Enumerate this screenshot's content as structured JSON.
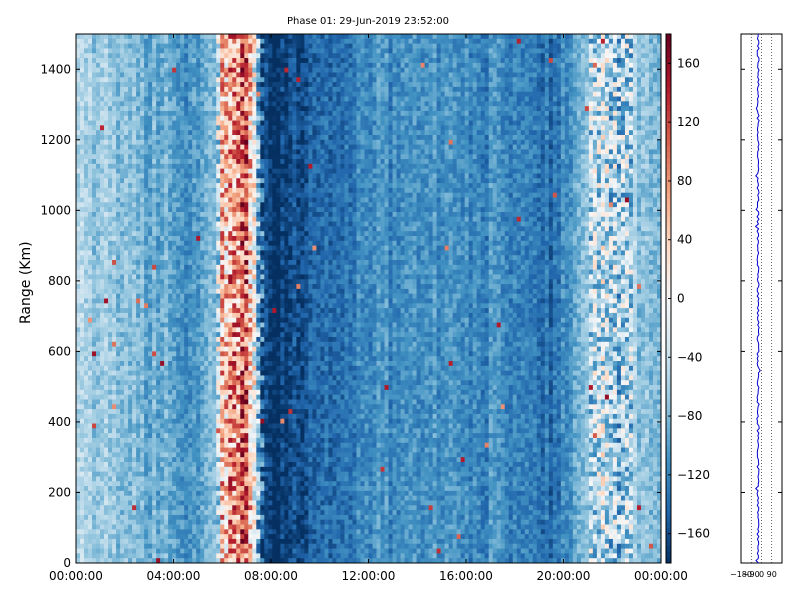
{
  "chart_data": [
    {
      "type": "heatmap",
      "title": "Phase 01: 29-Jun-2019 23:52:00",
      "ylabel": "Range (Km)",
      "xlabel": "",
      "xticks": [
        "00:00:00",
        "04:00:00",
        "08:00:00",
        "12:00:00",
        "16:00:00",
        "20:00:00",
        "00:00:00"
      ],
      "xlim_hours": [
        0,
        24
      ],
      "yticks": [
        "0",
        "200",
        "400",
        "600",
        "800",
        "1000",
        "1200",
        "1400"
      ],
      "ylim": [
        0,
        1500
      ],
      "colorbar": {
        "colormap": "RdBu_r",
        "range": [
          -180,
          180
        ],
        "ticks": [
          "−160",
          "−120",
          "−80",
          "−40",
          "0",
          "40",
          "80",
          "120",
          "160"
        ]
      },
      "phase_profile_by_hour": [
        {
          "hour": 0,
          "phase": -60
        },
        {
          "hour": 1,
          "phase": -65
        },
        {
          "hour": 2,
          "phase": -75
        },
        {
          "hour": 3,
          "phase": -85
        },
        {
          "hour": 4,
          "phase": -95
        },
        {
          "hour": 5,
          "phase": -110
        },
        {
          "hour": 5.8,
          "phase": -60
        },
        {
          "hour": 6,
          "phase": 50
        },
        {
          "hour": 7,
          "phase": 110
        },
        {
          "hour": 7.6,
          "phase": -130
        },
        {
          "hour": 8,
          "phase": -180
        },
        {
          "hour": 9,
          "phase": -165
        },
        {
          "hour": 10,
          "phase": -145
        },
        {
          "hour": 12,
          "phase": -115
        },
        {
          "hour": 14,
          "phase": -110
        },
        {
          "hour": 16,
          "phase": -110
        },
        {
          "hour": 18,
          "phase": -120
        },
        {
          "hour": 19.5,
          "phase": -135
        },
        {
          "hour": 20.5,
          "phase": -100
        },
        {
          "hour": 21.5,
          "phase": -40
        },
        {
          "hour": 22.5,
          "phase": -60
        },
        {
          "hour": 24,
          "phase": -75
        }
      ]
    },
    {
      "type": "line",
      "series": [
        {
          "values_mean_phase": -30
        }
      ],
      "xlim": [
        -180,
        180
      ],
      "xticks": [
        "−180",
        "−90",
        "0",
        "90"
      ],
      "ylim": [
        0,
        1500
      ],
      "grid": true
    }
  ]
}
